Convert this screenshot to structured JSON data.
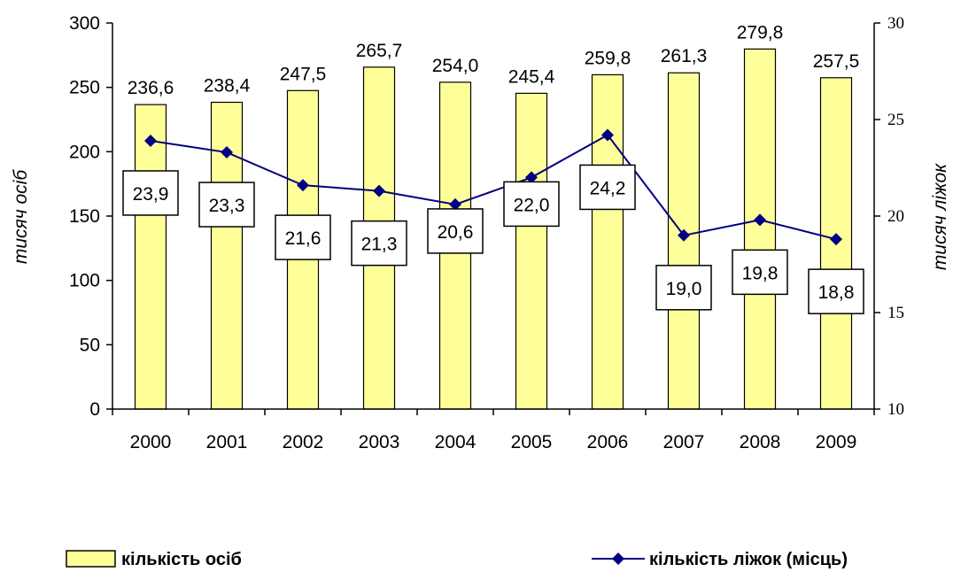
{
  "chart_data": {
    "type": "bar+line",
    "categories": [
      "2000",
      "2001",
      "2002",
      "2003",
      "2004",
      "2005",
      "2006",
      "2007",
      "2008",
      "2009"
    ],
    "series": [
      {
        "name": "кількість осіб",
        "type": "bar",
        "axis": "left",
        "values": [
          236.6,
          238.4,
          247.5,
          265.7,
          254.0,
          245.4,
          259.8,
          261.3,
          279.8,
          257.5
        ],
        "labels": [
          "236,6",
          "238,4",
          "247,5",
          "265,7",
          "254,0",
          "245,4",
          "259,8",
          "261,3",
          "279,8",
          "257,5"
        ],
        "color": "#ffff99"
      },
      {
        "name": "кількість ліжок (місць)",
        "type": "line",
        "axis": "right",
        "values": [
          23.9,
          23.3,
          21.6,
          21.3,
          20.6,
          22.0,
          24.2,
          19.0,
          19.8,
          18.8
        ],
        "labels": [
          "23,9",
          "23,3",
          "21,6",
          "21,3",
          "20,6",
          "22,0",
          "24,2",
          "19,0",
          "19,8",
          "18,8"
        ],
        "color": "#000080"
      }
    ],
    "ylabel": "тисяч осіб",
    "y2label": "тисяч ліжок",
    "ylim": [
      0,
      300
    ],
    "yticks": [
      "0",
      "50",
      "100",
      "150",
      "200",
      "250",
      "300"
    ],
    "y2lim": [
      10,
      30
    ],
    "y2ticks": [
      "10",
      "15",
      "20",
      "25",
      "30"
    ],
    "grid": false,
    "legend_position": "bottom"
  }
}
